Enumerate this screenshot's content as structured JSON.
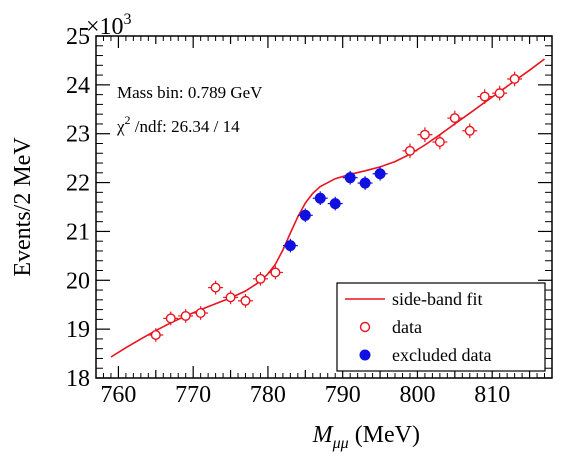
{
  "chart_data": {
    "type": "scatter",
    "xlabel_symbol": "M",
    "xlabel_subscript": "μμ",
    "xlabel_unit": " (MeV)",
    "ylabel": "Events/2 MeV",
    "y_multiplier_base": "×10",
    "y_multiplier_exp": "3",
    "xlim": [
      757,
      818
    ],
    "ylim": [
      18,
      25
    ],
    "x_ticks": [
      "760",
      "770",
      "780",
      "790",
      "800",
      "810"
    ],
    "x_tick_values": [
      760,
      770,
      780,
      790,
      800,
      810
    ],
    "y_ticks": [
      "18",
      "19",
      "20",
      "21",
      "22",
      "23",
      "24",
      "25"
    ],
    "y_tick_values": [
      18,
      19,
      20,
      21,
      22,
      23,
      24,
      25
    ],
    "annotations": {
      "mass_bin": "Mass bin: 0.789 GeV",
      "chi2_symbol": "χ",
      "chi2_exp": "2",
      "chi2_rest": " /ndf: 26.34 / 14"
    },
    "legend": {
      "placement": "bottom-right",
      "fit_label": "side-band fit",
      "data_label": "data",
      "excluded_label": "excluded data"
    },
    "colors": {
      "fit": "#e8141e",
      "data": "#e8141e",
      "excluded": "#1010e0"
    },
    "fit_curve": {
      "x": [
        759,
        761,
        763,
        765,
        767,
        769,
        771,
        773,
        775,
        777,
        779,
        780,
        781,
        782,
        783,
        784,
        785,
        786,
        787,
        789,
        791,
        793,
        795,
        797,
        799,
        801,
        803,
        805,
        807,
        809,
        811,
        813,
        815,
        817
      ],
      "y": [
        18.43,
        18.62,
        18.8,
        18.97,
        19.13,
        19.27,
        19.4,
        19.52,
        19.64,
        19.78,
        19.98,
        20.13,
        20.33,
        20.62,
        20.97,
        21.3,
        21.58,
        21.78,
        21.92,
        22.08,
        22.17,
        22.24,
        22.32,
        22.43,
        22.58,
        22.77,
        22.98,
        23.2,
        23.42,
        23.64,
        23.86,
        24.08,
        24.3,
        24.53
      ]
    },
    "series": [
      {
        "name": "data",
        "x": [
          765,
          767,
          769,
          771,
          773,
          775,
          777,
          779,
          781,
          799,
          801,
          803,
          805,
          807,
          809,
          811,
          813
        ],
        "y": [
          18.88,
          19.22,
          19.27,
          19.33,
          19.85,
          19.65,
          19.58,
          20.03,
          20.16,
          22.65,
          22.98,
          22.83,
          23.32,
          23.06,
          23.76,
          23.83,
          24.12
        ],
        "y_err": [
          0.14,
          0.14,
          0.14,
          0.14,
          0.14,
          0.14,
          0.14,
          0.14,
          0.14,
          0.15,
          0.15,
          0.15,
          0.15,
          0.15,
          0.15,
          0.15,
          0.15
        ],
        "x_err": [
          1,
          1,
          1,
          1,
          1,
          1,
          1,
          1,
          1,
          1,
          1,
          1,
          1,
          1,
          1,
          1,
          1
        ]
      },
      {
        "name": "excluded data",
        "x": [
          783,
          785,
          787,
          789,
          791,
          793,
          795
        ],
        "y": [
          20.71,
          21.33,
          21.68,
          21.57,
          22.1,
          21.99,
          22.18
        ],
        "y_err": [
          0.14,
          0.14,
          0.14,
          0.14,
          0.14,
          0.14,
          0.14
        ],
        "x_err": [
          1,
          1,
          1,
          1,
          1,
          1,
          1
        ]
      }
    ]
  }
}
